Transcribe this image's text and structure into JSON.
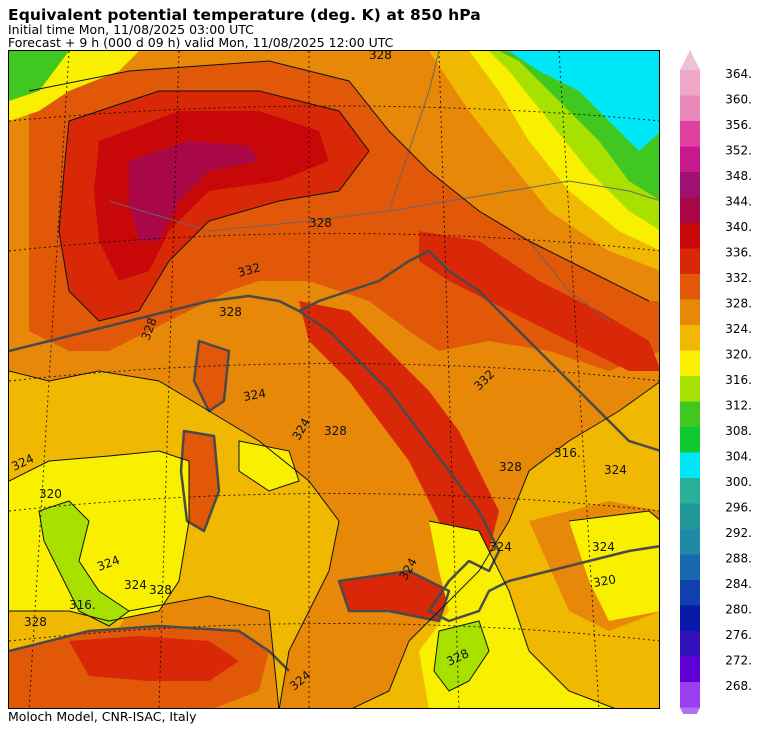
{
  "header": {
    "title": "Equivalent potential temperature (deg. K) at 850 hPa",
    "initial_time": "Initial time  Mon, 11/08/2025  03:00 UTC",
    "forecast": "Forecast  +   9 h  (000 d 09 h)  valid Mon, 11/08/2025 12:00 UTC"
  },
  "footer": {
    "credit": "Moloch Model, CNR-ISAC, Italy"
  },
  "colorbar": {
    "levels": [
      {
        "label": "364.",
        "color": "#f0a8c8"
      },
      {
        "label": "360.",
        "color": "#e888b8"
      },
      {
        "label": "356.",
        "color": "#e040a0"
      },
      {
        "label": "352.",
        "color": "#c81890"
      },
      {
        "label": "348.",
        "color": "#a01070"
      },
      {
        "label": "344.",
        "color": "#a80848"
      },
      {
        "label": "340.",
        "color": "#c80808"
      },
      {
        "label": "336.",
        "color": "#d82808"
      },
      {
        "label": "332.",
        "color": "#e05808"
      },
      {
        "label": "328.",
        "color": "#e88808"
      },
      {
        "label": "324.",
        "color": "#f0b800"
      },
      {
        "label": "320.",
        "color": "#f8f000"
      },
      {
        "label": "316.",
        "color": "#a8e000"
      },
      {
        "label": "312.",
        "color": "#40c820"
      },
      {
        "label": "308.",
        "color": "#10c830"
      },
      {
        "label": "304.",
        "color": "#00e8f8"
      },
      {
        "label": "300.",
        "color": "#28b098"
      },
      {
        "label": "296.",
        "color": "#209898"
      },
      {
        "label": "292.",
        "color": "#2088a8"
      },
      {
        "label": "288.",
        "color": "#1868b0"
      },
      {
        "label": "284.",
        "color": "#1040b0"
      },
      {
        "label": "280.",
        "color": "#0818a8"
      },
      {
        "label": "276.",
        "color": "#3010b8"
      },
      {
        "label": "272.",
        "color": "#6000d8"
      },
      {
        "label": "268.",
        "color": "#9840f0"
      }
    ],
    "top_arrow_color": "#f0c0d8",
    "bottom_arrow_color": "#b070f0"
  },
  "map": {
    "contour_labels": [
      {
        "text": "328",
        "value": 328
      },
      {
        "text": "328",
        "value": 328
      },
      {
        "text": "332",
        "value": 332
      },
      {
        "text": "328",
        "value": 328
      },
      {
        "text": "324",
        "value": 324
      },
      {
        "text": "324",
        "value": 324
      },
      {
        "text": "328",
        "value": 328
      },
      {
        "text": "328",
        "value": 328
      },
      {
        "text": "324",
        "value": 324
      },
      {
        "text": "320",
        "value": 320
      },
      {
        "text": "324",
        "value": 324
      },
      {
        "text": "324",
        "value": 324
      },
      {
        "text": "328",
        "value": 328
      },
      {
        "text": "316.",
        "value": 316
      },
      {
        "text": "328",
        "value": 328
      },
      {
        "text": "324",
        "value": 324
      },
      {
        "text": "324",
        "value": 324
      },
      {
        "text": "324",
        "value": 324
      },
      {
        "text": "320",
        "value": 320
      },
      {
        "text": "328",
        "value": 328
      },
      {
        "text": "328",
        "value": 328
      },
      {
        "text": "332",
        "value": 332
      },
      {
        "text": "316.",
        "value": 316
      },
      {
        "text": "324",
        "value": 324
      },
      {
        "text": "324",
        "value": 324
      }
    ]
  }
}
